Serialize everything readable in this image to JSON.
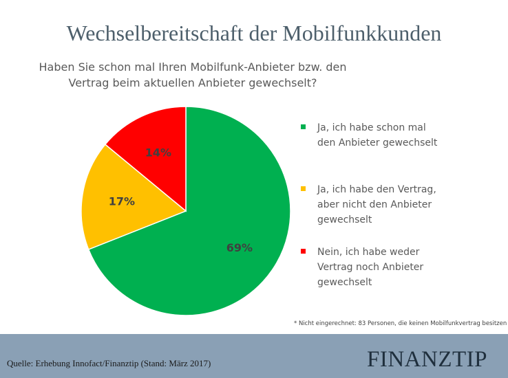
{
  "chart_data": {
    "type": "pie",
    "title": "Wechselbereitschaft der Mobilfunkkunden",
    "subtitle_lines": [
      "Haben Sie schon mal Ihren Mobilfunk-Anbieter bzw. den",
      "Vertrag beim aktuellen Anbieter gewechselt?"
    ],
    "slices": [
      {
        "label_lines": [
          "Ja, ich habe schon mal",
          "den Anbieter gewechselt"
        ],
        "value": 69,
        "display": "69%",
        "color": "#00b050"
      },
      {
        "label_lines": [
          "Ja, ich habe den Vertrag,",
          "aber nicht den Anbieter",
          "gewechselt"
        ],
        "value": 17,
        "display": "17%",
        "color": "#ffc000"
      },
      {
        "label_lines": [
          "Nein, ich habe weder",
          "Vertrag noch Anbieter",
          "gewechselt"
        ],
        "value": 14,
        "display": "14%",
        "color": "#ff0000"
      }
    ],
    "legend_position": "right",
    "label_color": "#404040"
  },
  "footnote": "* Nicht eingerechnet: 83 Personen, die keinen Mobilfunkvertrag besitzen",
  "footer": {
    "source": "Quelle: Erhebung Innofact/Finanztip (Stand: März 2017)",
    "logo": "FINANZTIP"
  }
}
